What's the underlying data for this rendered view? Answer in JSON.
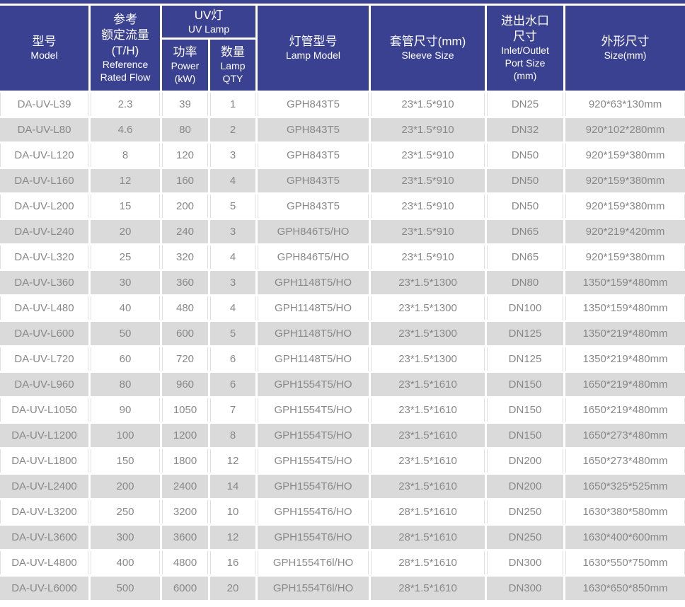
{
  "colors": {
    "header_bg": "#3A4190",
    "header_text": "#FFFFFF",
    "row_even_bg": "#DADADA",
    "row_odd_bg": "#FFFFFF",
    "body_text": "#888888",
    "divider": "#DFDFDF"
  },
  "table": {
    "header": {
      "model": {
        "zh": "型号",
        "en": "Model"
      },
      "flow": {
        "zh": [
          "参考",
          "额定流量",
          "(T/H)"
        ],
        "en": [
          "Reference",
          "Rated Flow"
        ]
      },
      "uv_lamp": {
        "zh": "UV灯",
        "en": "UV Lamp"
      },
      "power": {
        "zh": "功率",
        "en": [
          "Power",
          "(kW)"
        ]
      },
      "qty": {
        "zh": "数量",
        "en": [
          "Lamp",
          "QTY"
        ]
      },
      "lamp_model": {
        "zh": "灯管型号",
        "en": "Lamp Model"
      },
      "sleeve_size": {
        "zh": "套管尺寸(mm)",
        "en": "Sleeve Size"
      },
      "port_size": {
        "zh": [
          "进出水口",
          "尺寸"
        ],
        "en": [
          "Inlet/Outlet",
          "Port Size",
          "(mm)"
        ]
      },
      "overall_size": {
        "zh": "外形尺寸",
        "en": "Size(mm)"
      }
    },
    "columns": [
      "model",
      "flow",
      "power",
      "qty",
      "lamp_model",
      "sleeve_size",
      "port_size",
      "overall_size"
    ],
    "rows": [
      [
        "DA-UV-L39",
        "2.3",
        "39",
        "1",
        "GPH843T5",
        "23*1.5*910",
        "DN25",
        "920*63*130mm"
      ],
      [
        "DA-UV-L80",
        "4.6",
        "80",
        "2",
        "GPH843T5",
        "23*1.5*910",
        "DN32",
        "920*102*280mm"
      ],
      [
        "DA-UV-L120",
        "8",
        "120",
        "3",
        "GPH843T5",
        "23*1.5*910",
        "DN50",
        "920*159*380mm"
      ],
      [
        "DA-UV-L160",
        "12",
        "160",
        "4",
        "GPH843T5",
        "23*1.5*910",
        "DN50",
        "920*159*380mm"
      ],
      [
        "DA-UV-L200",
        "15",
        "200",
        "5",
        "GPH843T5",
        "23*1.5*910",
        "DN50",
        "920*159*380mm"
      ],
      [
        "DA-UV-L240",
        "20",
        "240",
        "3",
        "GPH846T5/HO",
        "23*1.5*910",
        "DN65",
        "920*219*420mm"
      ],
      [
        "DA-UV-L320",
        "25",
        "320",
        "4",
        "GPH846T5/HO",
        "23*1.5*910",
        "DN65",
        "920*159*380mm"
      ],
      [
        "DA-UV-L360",
        "30",
        "360",
        "3",
        "GPH1148T5/HO",
        "23*1.5*1300",
        "DN80",
        "1350*159*480mm"
      ],
      [
        "DA-UV-L480",
        "40",
        "480",
        "4",
        "GPH1148T5/HO",
        "23*1.5*1300",
        "DN100",
        "1350*159*480mm"
      ],
      [
        "DA-UV-L600",
        "50",
        "600",
        "5",
        "GPH1148T5/HO",
        "23*1.5*1300",
        "DN125",
        "1350*219*480mm"
      ],
      [
        "DA-UV-L720",
        "60",
        "720",
        "6",
        "GPH1148T5/HO",
        "23*1.5*1300",
        "DN125",
        "1350*219*480mm"
      ],
      [
        "DA-UV-L960",
        "80",
        "960",
        "6",
        "GPH1554T5/HO",
        "23*1.5*1610",
        "DN150",
        "1650*219*480mm"
      ],
      [
        "DA-UV-L1050",
        "90",
        "1050",
        "7",
        "GPH1554T5/HO",
        "23*1.5*1610",
        "DN150",
        "1650*219*480mm"
      ],
      [
        "DA-UV-L1200",
        "100",
        "1200",
        "8",
        "GPH1554T5/HO",
        "23*1.5*1610",
        "DN150",
        "1650*273*480mm"
      ],
      [
        "DA-UV-L1800",
        "150",
        "1800",
        "12",
        "GPH1554T5/HO",
        "23*1.5*1610",
        "DN200",
        "1650*273*480mm"
      ],
      [
        "DA-UV-L2400",
        "200",
        "2400",
        "14",
        "GPH1554T6/HO",
        "23*1.5*1610",
        "DN200",
        "1650*325*525mm"
      ],
      [
        "DA-UV-L3200",
        "250",
        "3200",
        "10",
        "GPH1554T6/HO",
        "28*1.5*1610",
        "DN250",
        "1630*380*580mm"
      ],
      [
        "DA-UV-L3600",
        "300",
        "3600",
        "12",
        "GPH1554T6/HO",
        "28*1.5*1610",
        "DN250",
        "1630*400*600mm"
      ],
      [
        "DA-UV-L4800",
        "400",
        "4800",
        "16",
        "GPH1554T6l/HO",
        "28*1.5*1610",
        "DN300",
        "1630*550*750mm"
      ],
      [
        "DA-UV-L6000",
        "500",
        "6000",
        "20",
        "GPH1554T6l/HO",
        "28*1.5*1610",
        "DN300",
        "1630*650*850mm"
      ]
    ]
  }
}
